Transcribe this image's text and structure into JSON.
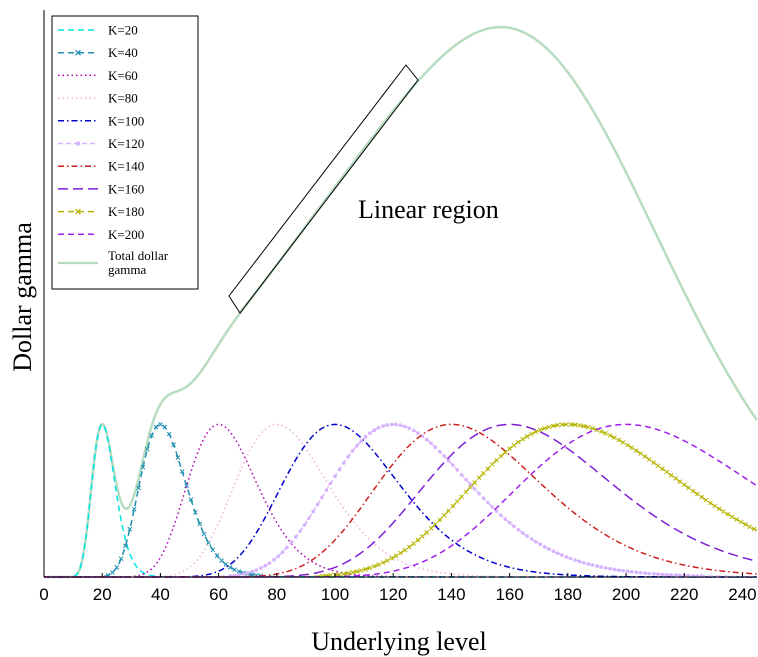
{
  "chart_data": {
    "type": "line",
    "title": "",
    "xlabel": "Underlying level",
    "ylabel": "Dollar gamma",
    "xlim": [
      0,
      245
    ],
    "xticks": [
      0,
      20,
      40,
      60,
      80,
      100,
      120,
      140,
      160,
      180,
      200,
      220,
      240
    ],
    "grid": false,
    "legend_position": "top-left",
    "annotation": "Linear region",
    "series": [
      {
        "name": "K=20",
        "strike": 20,
        "color": "#00e5e5",
        "style": "dash"
      },
      {
        "name": "K=40",
        "strike": 40,
        "color": "#1f8fb0",
        "style": "dash-x"
      },
      {
        "name": "K=60",
        "strike": 60,
        "color": "#b000b0",
        "style": "dot"
      },
      {
        "name": "K=80",
        "strike": 80,
        "color": "#f0b0e0",
        "style": "dot"
      },
      {
        "name": "K=100",
        "strike": 100,
        "color": "#0000cc",
        "style": "dashdot"
      },
      {
        "name": "K=120",
        "strike": 120,
        "color": "#d6b2ff",
        "style": "dash-dot-marker"
      },
      {
        "name": "K=140",
        "strike": 140,
        "color": "#cc1f1f",
        "style": "dashdot"
      },
      {
        "name": "K=160",
        "strike": 160,
        "color": "#7e1fd6",
        "style": "longdash"
      },
      {
        "name": "K=180",
        "strike": 180,
        "color": "#b5b500",
        "style": "dash-x"
      },
      {
        "name": "K=200",
        "strike": 200,
        "color": "#a020f0",
        "style": "dash"
      }
    ],
    "total": {
      "name": "Total dollar gamma",
      "color": "#b8dcc0"
    }
  }
}
